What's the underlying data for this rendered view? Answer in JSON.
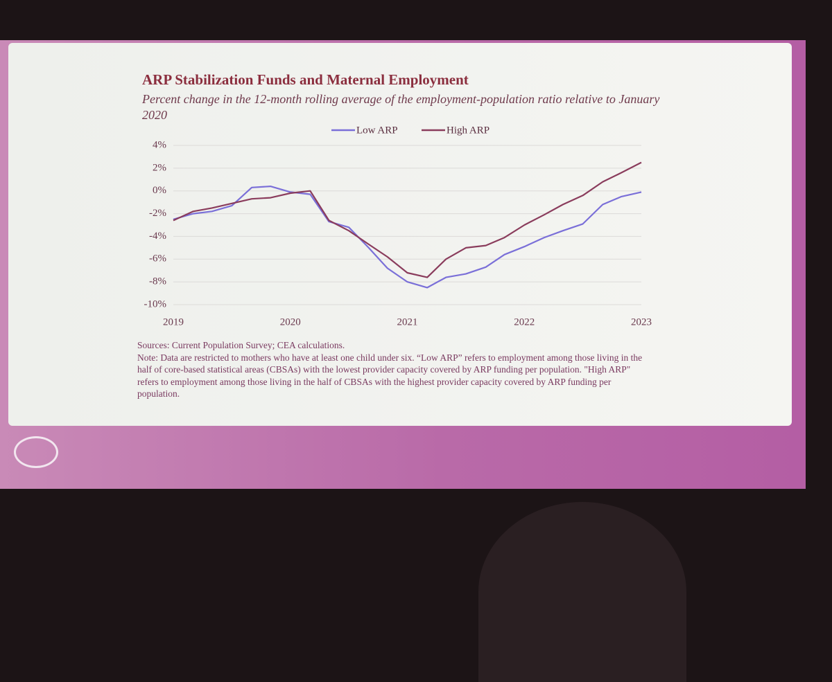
{
  "chart_data": {
    "type": "line",
    "title": "ARP Stabilization Funds and Maternal Employment",
    "subtitle": "Percent change in the 12-month rolling average of the employment-population ratio relative to January 2020",
    "x": [
      2019,
      2019.17,
      2019.33,
      2019.5,
      2019.67,
      2019.83,
      2020,
      2020.17,
      2020.33,
      2020.5,
      2020.67,
      2020.83,
      2021,
      2021.17,
      2021.33,
      2021.5,
      2021.67,
      2021.83,
      2022,
      2022.17,
      2022.33,
      2022.5,
      2022.67,
      2022.83,
      2023
    ],
    "series": [
      {
        "name": "Low ARP",
        "color": "#7a6fd8",
        "values": [
          -2.5,
          -2.0,
          -1.8,
          -1.3,
          0.3,
          0.4,
          -0.1,
          -0.3,
          -2.7,
          -3.2,
          -5.0,
          -6.8,
          -8.0,
          -8.5,
          -7.6,
          -7.3,
          -6.7,
          -5.6,
          -4.9,
          -4.1,
          -3.5,
          -2.9,
          -1.2,
          -0.5,
          -0.1
        ]
      },
      {
        "name": "High ARP",
        "color": "#8a3c5c",
        "values": [
          -2.6,
          -1.8,
          -1.5,
          -1.1,
          -0.7,
          -0.6,
          -0.2,
          0.0,
          -2.6,
          -3.5,
          -4.7,
          -5.8,
          -7.2,
          -7.6,
          -6.0,
          -5.0,
          -4.8,
          -4.1,
          -3.0,
          -2.1,
          -1.2,
          -0.4,
          0.8,
          1.6,
          2.5
        ]
      }
    ],
    "xlim": [
      2019,
      2023
    ],
    "xticks": [
      2019,
      2020,
      2021,
      2022,
      2023
    ],
    "ylim": [
      -10,
      4
    ],
    "yticks": [
      {
        "value": -10,
        "label": "-10%"
      },
      {
        "value": -8,
        "label": "-8%"
      },
      {
        "value": -6,
        "label": "-6%"
      },
      {
        "value": -4,
        "label": "-4%"
      },
      {
        "value": -2,
        "label": "-2%"
      },
      {
        "value": 0,
        "label": "0%"
      },
      {
        "value": 2,
        "label": "2%"
      },
      {
        "value": 4,
        "label": "4%"
      }
    ],
    "grid": true,
    "sources": "Sources: Current Population Survey; CEA calculations.",
    "note": "Note: Data are restricted to mothers who have at least one child under six. “Low ARP” refers to employment among those living in the half of core-based statistical areas (CBSAs) with the lowest provider capacity covered by ARP funding per population. \"High ARP\" refers to employment among those living in the half of CBSAs with the highest provider capacity covered by ARP funding per population."
  }
}
